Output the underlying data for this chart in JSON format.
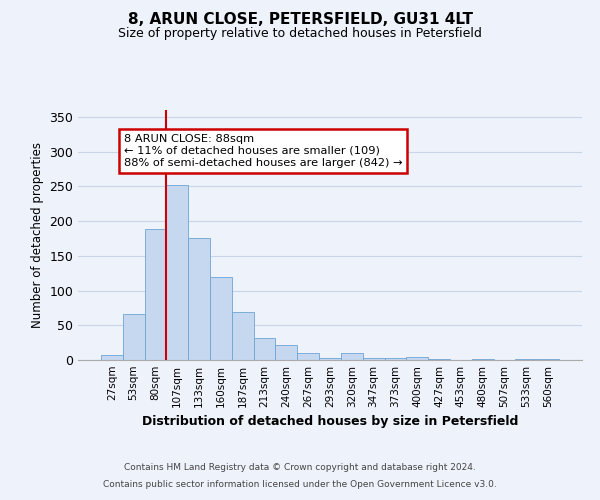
{
  "title": "8, ARUN CLOSE, PETERSFIELD, GU31 4LT",
  "subtitle": "Size of property relative to detached houses in Petersfield",
  "xlabel": "Distribution of detached houses by size in Petersfield",
  "ylabel": "Number of detached properties",
  "bar_labels": [
    "27sqm",
    "53sqm",
    "80sqm",
    "107sqm",
    "133sqm",
    "160sqm",
    "187sqm",
    "213sqm",
    "240sqm",
    "267sqm",
    "293sqm",
    "320sqm",
    "347sqm",
    "373sqm",
    "400sqm",
    "427sqm",
    "453sqm",
    "480sqm",
    "507sqm",
    "533sqm",
    "560sqm"
  ],
  "bar_values": [
    7,
    66,
    189,
    252,
    176,
    119,
    69,
    31,
    22,
    10,
    3,
    10,
    3,
    3,
    5,
    2,
    0,
    1,
    0,
    1,
    1
  ],
  "bar_color": "#c5d8f0",
  "bar_edge_color": "#6da4d4",
  "vline_x_index": 2.5,
  "vline_color": "#cc0000",
  "annotation_text": "8 ARUN CLOSE: 88sqm\n← 11% of detached houses are smaller (109)\n88% of semi-detached houses are larger (842) →",
  "annotation_box_color": "#cc0000",
  "ylim": [
    0,
    360
  ],
  "yticks": [
    0,
    50,
    100,
    150,
    200,
    250,
    300,
    350
  ],
  "footer_line1": "Contains HM Land Registry data © Crown copyright and database right 2024.",
  "footer_line2": "Contains public sector information licensed under the Open Government Licence v3.0.",
  "bg_color": "#eef2fa",
  "plot_bg_color": "#eef2fa",
  "grid_color": "#c8d4e8"
}
